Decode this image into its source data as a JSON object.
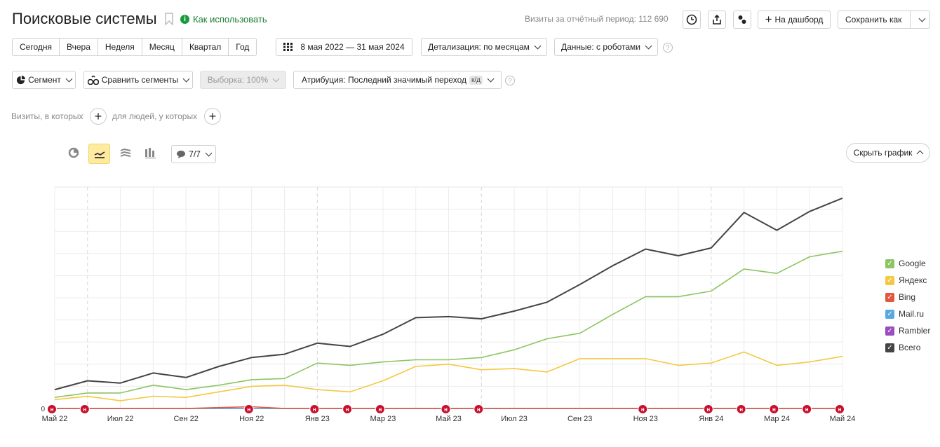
{
  "header": {
    "title": "Поисковые системы",
    "how_to": "Как использовать",
    "visits_label": "Визиты за отчётный период: 112 690",
    "dashboard_btn": "На дашборд",
    "save_as_btn": "Сохранить как"
  },
  "periods": [
    "Сегодня",
    "Вчера",
    "Неделя",
    "Месяц",
    "Квартал",
    "Год"
  ],
  "date_range": "8 мая 2022 — 31 мая 2024",
  "detail": "Детализация: по месяцам",
  "data_mode": "Данные: с роботами",
  "segment": "Сегмент",
  "compare": "Сравнить сегменты",
  "sample": "Выборка: 100%",
  "attribution": "Атрибуция: Последний значимый переход",
  "attribution_badge": "к/д",
  "filters": {
    "visits": "Визиты, в которых",
    "people": "для людей, у которых"
  },
  "chart_toolbar": {
    "notes": "7/7",
    "hide": "Скрыть график"
  },
  "colors": {
    "Google": "#8cc561",
    "Яндекс": "#f5c842",
    "Bing": "#e4573d",
    "Mail.ru": "#58a9e0",
    "Rambler": "#9b4dbd",
    "Всего": "#444444"
  },
  "chart_data": {
    "type": "line",
    "categories": [
      "Май 22",
      "Июн 22",
      "Июл 22",
      "Авг 22",
      "Сен 22",
      "Окт 22",
      "Ноя 22",
      "Дек 22",
      "Янв 23",
      "Фев 23",
      "Мар 23",
      "Апр 23",
      "Май 23",
      "Июн 23",
      "Июл 23",
      "Авг 23",
      "Сен 23",
      "Окт 23",
      "Ноя 23",
      "Дек 23",
      "Янв 24",
      "Фев 24",
      "Мар 24",
      "Апр 24",
      "Май 24"
    ],
    "x_tick_labels": [
      "Май 22",
      "Июл 22",
      "Сен 22",
      "Ноя 22",
      "Янв 23",
      "Мар 23",
      "Май 23",
      "Июл 23",
      "Сен 23",
      "Ноя 23",
      "Янв 24",
      "Мар 24",
      "Май 24"
    ],
    "y_tick_labels": [
      "0"
    ],
    "ylim": [
      0,
      100
    ],
    "series": [
      {
        "name": "Google",
        "values": [
          5,
          7,
          7,
          10.5,
          8.5,
          10.5,
          13,
          13.5,
          20.5,
          19.5,
          21,
          22,
          22,
          23,
          26.5,
          31.5,
          34,
          42.5,
          50.5,
          50.5,
          53,
          63,
          61,
          68.5,
          71
        ]
      },
      {
        "name": "Яндекс",
        "values": [
          4,
          5.5,
          3.5,
          5.5,
          5,
          7.5,
          10,
          10.5,
          8.5,
          7.5,
          12.5,
          19,
          20,
          17.5,
          18,
          16.5,
          22.5,
          22.5,
          22.5,
          19.5,
          20.5,
          25.5,
          19.5,
          21,
          23.5
        ]
      },
      {
        "name": "Bing",
        "values": [
          0,
          0,
          0,
          0,
          0,
          0.4,
          0.8,
          0,
          0,
          0,
          0,
          0,
          0,
          0,
          0,
          0,
          0,
          0,
          0,
          0,
          0,
          0,
          0,
          0,
          0
        ]
      },
      {
        "name": "Mail.ru",
        "values": [
          0,
          0,
          0,
          0,
          0,
          0,
          0,
          0,
          0,
          0,
          0,
          0,
          0,
          0,
          0,
          0,
          0,
          0,
          0,
          0,
          0,
          0,
          0,
          0,
          0
        ]
      },
      {
        "name": "Rambler",
        "values": [
          0,
          0,
          0,
          0,
          0,
          0,
          0,
          0,
          0,
          0,
          0,
          0,
          0,
          0,
          0,
          0,
          0,
          0,
          0,
          0,
          0,
          0,
          0,
          0,
          0
        ]
      },
      {
        "name": "Всего",
        "values": [
          8.5,
          12.5,
          11.5,
          16,
          14,
          19,
          23,
          24.5,
          29.5,
          28,
          33.5,
          41,
          41.5,
          40.5,
          44,
          48,
          56,
          64.5,
          72,
          69,
          72.5,
          88.5,
          80.5,
          89,
          95
        ]
      }
    ],
    "legend": [
      "Google",
      "Яндекс",
      "Bing",
      "Mail.ru",
      "Rambler",
      "Всего"
    ],
    "legend_position": "right",
    "grid": true,
    "note_markers": [
      "Май 22",
      "Июн 22",
      "Ноя 22",
      "Янв 23",
      "Фев 23",
      "Мар 23",
      "Май 23",
      "Июн 23",
      "Ноя 23",
      "Янв 24",
      "Фев 24",
      "Мар 24",
      "Апр 24",
      "Май 24"
    ]
  }
}
